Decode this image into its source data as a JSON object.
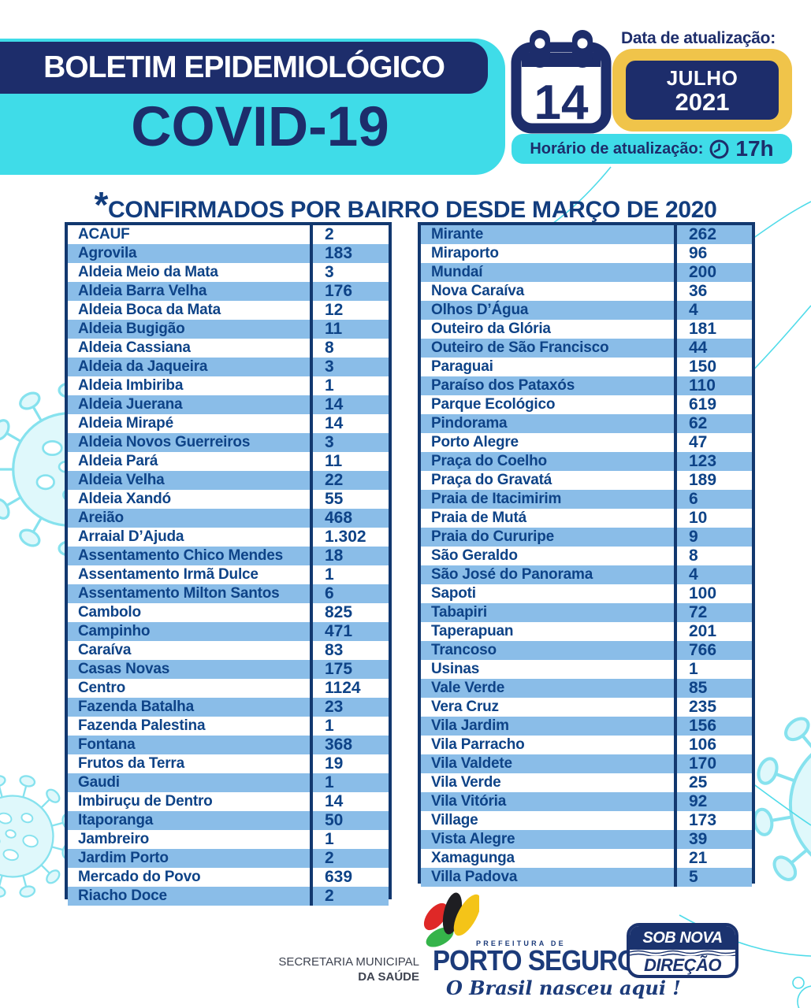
{
  "header": {
    "bulletin_title": "BOLETIM EPIDEMIOLÓGICO",
    "disease": "COVID-19",
    "update_date_label": "Data de atualização:",
    "day": "14",
    "month": "JULHO",
    "year": "2021",
    "update_time_label": "Horário de atualização:",
    "update_time": "17h"
  },
  "section_title": {
    "marker": "*",
    "text": "CONFIRMADOS POR BAIRRO DESDE MARÇO DE 2020"
  },
  "tables": {
    "left": {
      "rows": [
        [
          "ACAUF",
          "2"
        ],
        [
          "Agrovila",
          "183"
        ],
        [
          "Aldeia Meio da Mata",
          "3"
        ],
        [
          "Aldeia Barra Velha",
          "176"
        ],
        [
          "Aldeia Boca da Mata",
          "12"
        ],
        [
          "Aldeia Bugigão",
          "11"
        ],
        [
          "Aldeia Cassiana",
          "8"
        ],
        [
          "Aldeia da Jaqueira",
          "3"
        ],
        [
          "Aldeia Imbiriba",
          "1"
        ],
        [
          "Aldeia Juerana",
          "14"
        ],
        [
          "Aldeia Mirapé",
          "14"
        ],
        [
          "Aldeia Novos Guerreiros",
          "3"
        ],
        [
          "Aldeia Pará",
          "11"
        ],
        [
          "Aldeia Velha",
          "22"
        ],
        [
          "Aldeia Xandó",
          "55"
        ],
        [
          "Areião",
          "468"
        ],
        [
          "Arraial D’Ajuda",
          "1.302"
        ],
        [
          "Assentamento Chico Mendes",
          "18"
        ],
        [
          "Assentamento Irmã Dulce",
          "1"
        ],
        [
          "Assentamento Milton Santos",
          "6"
        ],
        [
          "Cambolo",
          "825"
        ],
        [
          "Campinho",
          "471"
        ],
        [
          "Caraíva",
          "83"
        ],
        [
          "Casas Novas",
          "175"
        ],
        [
          "Centro",
          "1124"
        ],
        [
          "Fazenda Batalha",
          "23"
        ],
        [
          "Fazenda Palestina",
          "1"
        ],
        [
          "Fontana",
          "368"
        ],
        [
          "Frutos da Terra",
          "19"
        ],
        [
          "Gaudi",
          "1"
        ],
        [
          "Imbiruçu de Dentro",
          "14"
        ],
        [
          "Itaporanga",
          "50"
        ],
        [
          "Jambreiro",
          "1"
        ],
        [
          "Jardim Porto",
          "2"
        ],
        [
          "Mercado do Povo",
          "639"
        ],
        [
          "Riacho Doce",
          "2"
        ]
      ]
    },
    "right": {
      "rows": [
        [
          "Mirante",
          "262"
        ],
        [
          "Miraporto",
          "96"
        ],
        [
          "Mundaí",
          "200"
        ],
        [
          "Nova Caraíva",
          "36"
        ],
        [
          "Olhos D’Água",
          "4"
        ],
        [
          "Outeiro da Glória",
          "181"
        ],
        [
          "Outeiro de São Francisco",
          "44"
        ],
        [
          "Paraguai",
          "150"
        ],
        [
          "Paraíso dos Pataxós",
          "110"
        ],
        [
          "Parque Ecológico",
          "619"
        ],
        [
          "Pindorama",
          "62"
        ],
        [
          "Porto Alegre",
          "47"
        ],
        [
          "Praça do Coelho",
          "123"
        ],
        [
          "Praça do Gravatá",
          "189"
        ],
        [
          "Praia de Itacimirim",
          "6"
        ],
        [
          "Praia de Mutá",
          "10"
        ],
        [
          "Praia do Cururipe",
          "9"
        ],
        [
          "São Geraldo",
          "8"
        ],
        [
          "São José do Panorama",
          "4"
        ],
        [
          "Sapoti",
          "100"
        ],
        [
          "Tabapiri",
          "72"
        ],
        [
          "Taperapuan",
          "201"
        ],
        [
          "Trancoso",
          "766"
        ],
        [
          "Usinas",
          "1"
        ],
        [
          "Vale Verde",
          "85"
        ],
        [
          "Vera Cruz",
          "235"
        ],
        [
          "Vila Jardim",
          "156"
        ],
        [
          "Vila Parracho",
          "106"
        ],
        [
          "Vila Valdete",
          "170"
        ],
        [
          "Vila Verde",
          "25"
        ],
        [
          "Vila Vitória",
          "92"
        ],
        [
          "Village",
          "173"
        ],
        [
          "Vista Alegre",
          "39"
        ],
        [
          "Xamagunga",
          "21"
        ],
        [
          "Villa Padova",
          "5"
        ]
      ]
    }
  },
  "footer": {
    "secretariat_line1": "SECRETARIA MUNICIPAL",
    "secretariat_line2": "DA SAÚDE",
    "logo_small_label": "PREFEITURA DE",
    "logo_city": "PORTO SEGURO",
    "logo_slogan": "O Brasil nasceu aqui !",
    "badge_top": "SOB NOVA",
    "badge_bottom": "DIREÇÃO"
  },
  "colors": {
    "navy": "#1d2d6b",
    "cyan": "#3fdce8",
    "yellow": "#f0c44a",
    "table_border": "#12386f",
    "row_blue": "#8abde8",
    "cell_text": "#0e4387"
  }
}
